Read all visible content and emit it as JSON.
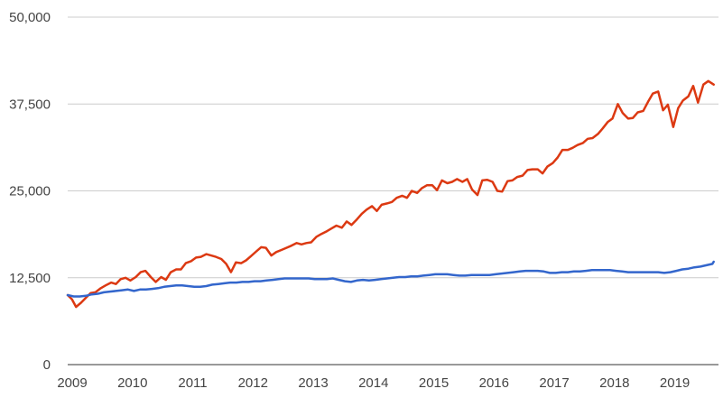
{
  "chart_data": {
    "type": "line",
    "title": "",
    "xlabel": "",
    "ylabel": "",
    "xlim": [
      2009.0,
      2019.8
    ],
    "ylim": [
      0,
      50000
    ],
    "y_ticks": [
      0,
      12500,
      25000,
      37500,
      50000
    ],
    "y_tick_labels": [
      "0",
      "12,500",
      "25,000",
      "37,500",
      "50,000"
    ],
    "x_ticks": [
      2009,
      2010,
      2011,
      2012,
      2013,
      2014,
      2015,
      2016,
      2017,
      2018,
      2019
    ],
    "x_tick_labels": [
      "2009",
      "2010",
      "2011",
      "2012",
      "2013",
      "2014",
      "2015",
      "2016",
      "2017",
      "2018",
      "2019"
    ],
    "grid": "horizontal",
    "legend": "none",
    "series": [
      {
        "color": "#dc3912",
        "points": [
          [
            2009.0,
            10000
          ],
          [
            2009.07,
            9400
          ],
          [
            2009.14,
            8300
          ],
          [
            2009.22,
            8900
          ],
          [
            2009.3,
            9600
          ],
          [
            2009.38,
            10300
          ],
          [
            2009.46,
            10400
          ],
          [
            2009.55,
            11000
          ],
          [
            2009.63,
            11400
          ],
          [
            2009.72,
            11800
          ],
          [
            2009.8,
            11600
          ],
          [
            2009.88,
            12300
          ],
          [
            2009.96,
            12500
          ],
          [
            2010.04,
            12100
          ],
          [
            2010.13,
            12600
          ],
          [
            2010.21,
            13300
          ],
          [
            2010.29,
            13500
          ],
          [
            2010.38,
            12600
          ],
          [
            2010.46,
            11900
          ],
          [
            2010.55,
            12600
          ],
          [
            2010.63,
            12200
          ],
          [
            2010.71,
            13300
          ],
          [
            2010.8,
            13700
          ],
          [
            2010.88,
            13700
          ],
          [
            2010.96,
            14600
          ],
          [
            2011.05,
            14900
          ],
          [
            2011.13,
            15400
          ],
          [
            2011.21,
            15500
          ],
          [
            2011.3,
            15900
          ],
          [
            2011.38,
            15700
          ],
          [
            2011.46,
            15500
          ],
          [
            2011.55,
            15200
          ],
          [
            2011.63,
            14500
          ],
          [
            2011.71,
            13300
          ],
          [
            2011.79,
            14700
          ],
          [
            2011.88,
            14600
          ],
          [
            2011.96,
            15000
          ],
          [
            2012.04,
            15600
          ],
          [
            2012.13,
            16300
          ],
          [
            2012.21,
            16900
          ],
          [
            2012.29,
            16800
          ],
          [
            2012.38,
            15700
          ],
          [
            2012.46,
            16200
          ],
          [
            2012.55,
            16500
          ],
          [
            2012.63,
            16800
          ],
          [
            2012.71,
            17100
          ],
          [
            2012.8,
            17500
          ],
          [
            2012.88,
            17300
          ],
          [
            2012.96,
            17500
          ],
          [
            2013.04,
            17600
          ],
          [
            2013.13,
            18400
          ],
          [
            2013.21,
            18800
          ],
          [
            2013.3,
            19200
          ],
          [
            2013.38,
            19600
          ],
          [
            2013.46,
            20000
          ],
          [
            2013.55,
            19700
          ],
          [
            2013.63,
            20600
          ],
          [
            2013.71,
            20100
          ],
          [
            2013.8,
            20900
          ],
          [
            2013.88,
            21700
          ],
          [
            2013.96,
            22300
          ],
          [
            2014.05,
            22800
          ],
          [
            2014.13,
            22100
          ],
          [
            2014.21,
            23000
          ],
          [
            2014.3,
            23200
          ],
          [
            2014.38,
            23400
          ],
          [
            2014.46,
            24000
          ],
          [
            2014.55,
            24300
          ],
          [
            2014.63,
            24000
          ],
          [
            2014.71,
            25000
          ],
          [
            2014.8,
            24700
          ],
          [
            2014.88,
            25400
          ],
          [
            2014.96,
            25800
          ],
          [
            2015.05,
            25800
          ],
          [
            2015.13,
            25100
          ],
          [
            2015.21,
            26500
          ],
          [
            2015.3,
            26100
          ],
          [
            2015.38,
            26300
          ],
          [
            2015.46,
            26700
          ],
          [
            2015.55,
            26300
          ],
          [
            2015.63,
            26700
          ],
          [
            2015.71,
            25200
          ],
          [
            2015.8,
            24400
          ],
          [
            2015.88,
            26500
          ],
          [
            2015.96,
            26600
          ],
          [
            2016.05,
            26300
          ],
          [
            2016.13,
            25000
          ],
          [
            2016.21,
            24900
          ],
          [
            2016.3,
            26400
          ],
          [
            2016.38,
            26500
          ],
          [
            2016.46,
            27000
          ],
          [
            2016.55,
            27200
          ],
          [
            2016.63,
            28000
          ],
          [
            2016.71,
            28100
          ],
          [
            2016.8,
            28100
          ],
          [
            2016.88,
            27500
          ],
          [
            2016.96,
            28500
          ],
          [
            2017.05,
            29000
          ],
          [
            2017.13,
            29800
          ],
          [
            2017.21,
            30900
          ],
          [
            2017.3,
            30900
          ],
          [
            2017.38,
            31200
          ],
          [
            2017.46,
            31600
          ],
          [
            2017.55,
            31900
          ],
          [
            2017.63,
            32500
          ],
          [
            2017.71,
            32600
          ],
          [
            2017.8,
            33200
          ],
          [
            2017.88,
            34000
          ],
          [
            2017.96,
            34900
          ],
          [
            2018.04,
            35400
          ],
          [
            2018.13,
            37500
          ],
          [
            2018.21,
            36200
          ],
          [
            2018.3,
            35400
          ],
          [
            2018.38,
            35500
          ],
          [
            2018.46,
            36300
          ],
          [
            2018.55,
            36500
          ],
          [
            2018.63,
            37800
          ],
          [
            2018.71,
            39000
          ],
          [
            2018.8,
            39300
          ],
          [
            2018.88,
            36600
          ],
          [
            2018.96,
            37400
          ],
          [
            2019.05,
            34200
          ],
          [
            2019.13,
            36900
          ],
          [
            2019.21,
            38000
          ],
          [
            2019.3,
            38600
          ],
          [
            2019.38,
            40100
          ],
          [
            2019.46,
            37700
          ],
          [
            2019.55,
            40300
          ],
          [
            2019.63,
            40800
          ],
          [
            2019.72,
            40300
          ]
        ]
      },
      {
        "color": "#3366cc",
        "points": [
          [
            2009.0,
            10000
          ],
          [
            2009.1,
            9800
          ],
          [
            2009.2,
            9800
          ],
          [
            2009.3,
            9900
          ],
          [
            2009.4,
            10100
          ],
          [
            2009.5,
            10200
          ],
          [
            2009.6,
            10400
          ],
          [
            2009.7,
            10500
          ],
          [
            2009.8,
            10600
          ],
          [
            2009.9,
            10700
          ],
          [
            2010.0,
            10800
          ],
          [
            2010.1,
            10600
          ],
          [
            2010.2,
            10800
          ],
          [
            2010.3,
            10800
          ],
          [
            2010.4,
            10900
          ],
          [
            2010.5,
            11000
          ],
          [
            2010.6,
            11200
          ],
          [
            2010.7,
            11300
          ],
          [
            2010.8,
            11400
          ],
          [
            2010.9,
            11400
          ],
          [
            2011.0,
            11300
          ],
          [
            2011.1,
            11200
          ],
          [
            2011.2,
            11200
          ],
          [
            2011.3,
            11300
          ],
          [
            2011.4,
            11500
          ],
          [
            2011.5,
            11600
          ],
          [
            2011.6,
            11700
          ],
          [
            2011.7,
            11800
          ],
          [
            2011.8,
            11800
          ],
          [
            2011.9,
            11900
          ],
          [
            2012.0,
            11900
          ],
          [
            2012.1,
            12000
          ],
          [
            2012.2,
            12000
          ],
          [
            2012.3,
            12100
          ],
          [
            2012.4,
            12200
          ],
          [
            2012.5,
            12300
          ],
          [
            2012.6,
            12400
          ],
          [
            2012.7,
            12400
          ],
          [
            2012.8,
            12400
          ],
          [
            2012.9,
            12400
          ],
          [
            2013.0,
            12400
          ],
          [
            2013.1,
            12300
          ],
          [
            2013.2,
            12300
          ],
          [
            2013.3,
            12300
          ],
          [
            2013.4,
            12400
          ],
          [
            2013.5,
            12200
          ],
          [
            2013.6,
            12000
          ],
          [
            2013.7,
            11900
          ],
          [
            2013.8,
            12100
          ],
          [
            2013.9,
            12200
          ],
          [
            2014.0,
            12100
          ],
          [
            2014.1,
            12200
          ],
          [
            2014.2,
            12300
          ],
          [
            2014.3,
            12400
          ],
          [
            2014.4,
            12500
          ],
          [
            2014.5,
            12600
          ],
          [
            2014.6,
            12600
          ],
          [
            2014.7,
            12700
          ],
          [
            2014.8,
            12700
          ],
          [
            2014.9,
            12800
          ],
          [
            2015.0,
            12900
          ],
          [
            2015.1,
            13000
          ],
          [
            2015.2,
            13000
          ],
          [
            2015.3,
            13000
          ],
          [
            2015.4,
            12900
          ],
          [
            2015.5,
            12800
          ],
          [
            2015.6,
            12800
          ],
          [
            2015.7,
            12900
          ],
          [
            2015.8,
            12900
          ],
          [
            2015.9,
            12900
          ],
          [
            2016.0,
            12900
          ],
          [
            2016.1,
            13000
          ],
          [
            2016.2,
            13100
          ],
          [
            2016.3,
            13200
          ],
          [
            2016.4,
            13300
          ],
          [
            2016.5,
            13400
          ],
          [
            2016.6,
            13500
          ],
          [
            2016.7,
            13500
          ],
          [
            2016.8,
            13500
          ],
          [
            2016.9,
            13400
          ],
          [
            2017.0,
            13200
          ],
          [
            2017.1,
            13200
          ],
          [
            2017.2,
            13300
          ],
          [
            2017.3,
            13300
          ],
          [
            2017.4,
            13400
          ],
          [
            2017.5,
            13400
          ],
          [
            2017.6,
            13500
          ],
          [
            2017.7,
            13600
          ],
          [
            2017.8,
            13600
          ],
          [
            2017.9,
            13600
          ],
          [
            2018.0,
            13600
          ],
          [
            2018.1,
            13500
          ],
          [
            2018.2,
            13400
          ],
          [
            2018.3,
            13300
          ],
          [
            2018.4,
            13300
          ],
          [
            2018.5,
            13300
          ],
          [
            2018.6,
            13300
          ],
          [
            2018.7,
            13300
          ],
          [
            2018.8,
            13300
          ],
          [
            2018.9,
            13200
          ],
          [
            2019.0,
            13300
          ],
          [
            2019.1,
            13500
          ],
          [
            2019.2,
            13700
          ],
          [
            2019.3,
            13800
          ],
          [
            2019.4,
            14000
          ],
          [
            2019.5,
            14100
          ],
          [
            2019.6,
            14300
          ],
          [
            2019.7,
            14500
          ],
          [
            2019.72,
            14800
          ]
        ]
      }
    ]
  }
}
